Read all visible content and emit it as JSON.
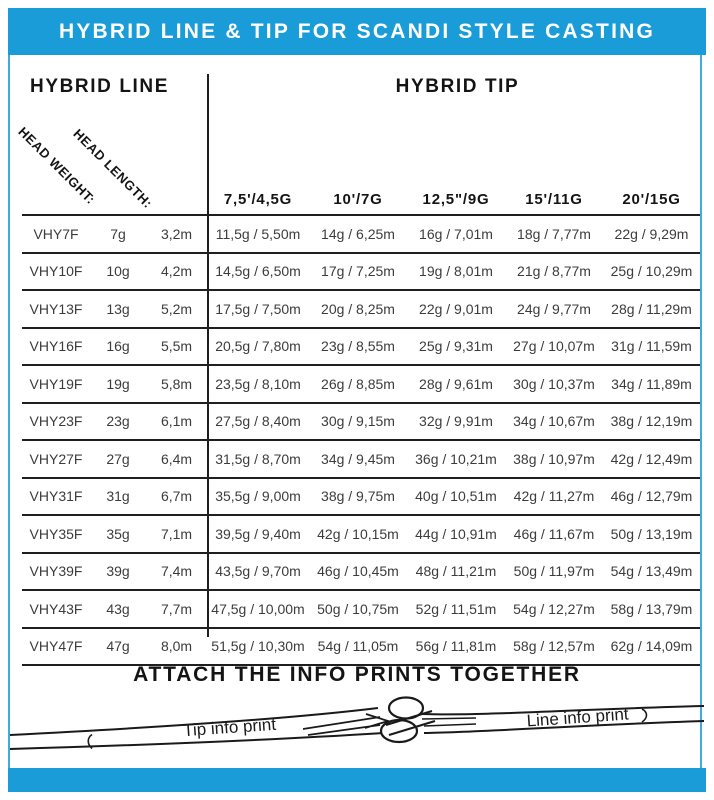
{
  "banner": {
    "title": "HYBRID LINE & TIP FOR SCANDI STYLE CASTING"
  },
  "table": {
    "left_heading": "HYBRID LINE",
    "right_heading": "HYBRID TIP",
    "diagonal_labels": {
      "weight": "HEAD WEIGHT:",
      "length": "HEAD LENGTH:"
    },
    "tip_columns": [
      "7,5'/4,5G",
      "10'/7G",
      "12,5\"/9G",
      "15'/11G",
      "20'/15G"
    ],
    "rows": [
      {
        "model": "VHY7F",
        "head_weight": "7g",
        "head_length": "3,2m",
        "tips": [
          "11,5g / 5,50m",
          "14g / 6,25m",
          "16g / 7,01m",
          "18g / 7,77m",
          "22g / 9,29m"
        ]
      },
      {
        "model": "VHY10F",
        "head_weight": "10g",
        "head_length": "4,2m",
        "tips": [
          "14,5g / 6,50m",
          "17g / 7,25m",
          "19g / 8,01m",
          "21g / 8,77m",
          "25g / 10,29m"
        ]
      },
      {
        "model": "VHY13F",
        "head_weight": "13g",
        "head_length": "5,2m",
        "tips": [
          "17,5g / 7,50m",
          "20g / 8,25m",
          "22g / 9,01m",
          "24g / 9,77m",
          "28g / 11,29m"
        ]
      },
      {
        "model": "VHY16F",
        "head_weight": "16g",
        "head_length": "5,5m",
        "tips": [
          "20,5g / 7,80m",
          "23g / 8,55m",
          "25g / 9,31m",
          "27g / 10,07m",
          "31g / 11,59m"
        ]
      },
      {
        "model": "VHY19F",
        "head_weight": "19g",
        "head_length": "5,8m",
        "tips": [
          "23,5g / 8,10m",
          "26g / 8,85m",
          "28g / 9,61m",
          "30g / 10,37m",
          "34g / 11,89m"
        ]
      },
      {
        "model": "VHY23F",
        "head_weight": "23g",
        "head_length": "6,1m",
        "tips": [
          "27,5g / 8,40m",
          "30g / 9,15m",
          "32g / 9,91m",
          "34g / 10,67m",
          "38g / 12,19m"
        ]
      },
      {
        "model": "VHY27F",
        "head_weight": "27g",
        "head_length": "6,4m",
        "tips": [
          "31,5g / 8,70m",
          "34g / 9,45m",
          "36g / 10,21m",
          "38g / 10,97m",
          "42g / 12,49m"
        ]
      },
      {
        "model": "VHY31F",
        "head_weight": "31g",
        "head_length": "6,7m",
        "tips": [
          "35,5g / 9,00m",
          "38g / 9,75m",
          "40g / 10,51m",
          "42g / 11,27m",
          "46g / 12,79m"
        ]
      },
      {
        "model": "VHY35F",
        "head_weight": "35g",
        "head_length": "7,1m",
        "tips": [
          "39,5g / 9,40m",
          "42g / 10,15m",
          "44g / 10,91m",
          "46g / 11,67m",
          "50g / 13,19m"
        ]
      },
      {
        "model": "VHY39F",
        "head_weight": "39g",
        "head_length": "7,4m",
        "tips": [
          "43,5g / 9,70m",
          "46g / 10,45m",
          "48g / 11,21m",
          "50g / 11,97m",
          "54g / 13,49m"
        ]
      },
      {
        "model": "VHY43F",
        "head_weight": "43g",
        "head_length": "7,7m",
        "tips": [
          "47,5g / 10,00m",
          "50g / 10,75m",
          "52g / 11,51m",
          "54g / 12,27m",
          "58g / 13,79m"
        ]
      },
      {
        "model": "VHY47F",
        "head_weight": "47g",
        "head_length": "8,0m",
        "tips": [
          "51,5g / 10,30m",
          "54g / 11,05m",
          "56g / 11,81m",
          "58g / 12,57m",
          "62g / 14,09m"
        ]
      }
    ]
  },
  "footer": {
    "heading": "ATTACH THE INFO PRINTS TOGETHER",
    "tip_label": "Tip info print",
    "line_label": "Line info print"
  },
  "colors": {
    "accent_blue": "#1a9cd9",
    "rule_black": "#1f1f1f",
    "text_dark": "#3c3c3c"
  }
}
